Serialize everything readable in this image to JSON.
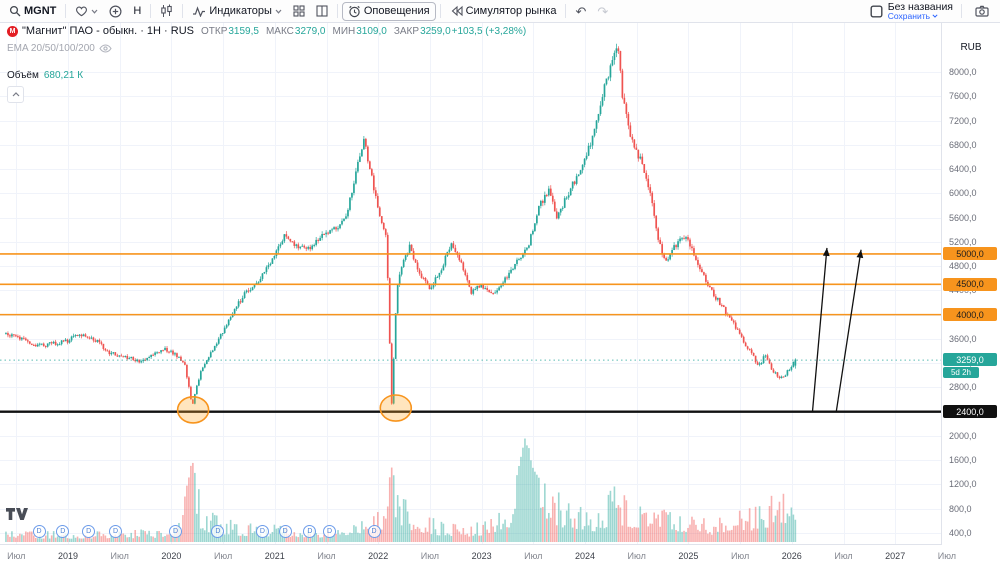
{
  "topbar": {
    "symbol": "MGNT",
    "interval": "H",
    "indicators": "Индикаторы",
    "alerts": "Оповещения",
    "replay": "Симулятор рынка",
    "layout_name": "Без названия",
    "save": "Сохранить"
  },
  "legend": {
    "title": "\"Магнит\" ПАО - обыкн. · 1H · RUS",
    "open_label": "ОТКР",
    "open": "3159,5",
    "high_label": "МАКС",
    "high": "3279,0",
    "low_label": "МИН",
    "low": "3109,0",
    "close_label": "ЗАКР",
    "close": "3259,0",
    "change": "+103,5 (+3,28%)",
    "ema": "EMA 20/50/100/200",
    "volume_label": "Объём",
    "volume_value": "680,21 К"
  },
  "price_axis": {
    "currency": "RUB",
    "label_min": 400,
    "label_max": 8000,
    "step": 400,
    "badges": [
      {
        "text": "5000,0",
        "price": 5000,
        "style": "orange"
      },
      {
        "text": "4500,0",
        "price": 4500,
        "style": "orange"
      },
      {
        "text": "4000,0",
        "price": 4000,
        "style": "orange"
      },
      {
        "text": "3259,0",
        "price": 3259,
        "style": "current",
        "countdown": "5d 2h"
      },
      {
        "text": "2400,0",
        "price": 2400,
        "style": "black"
      }
    ]
  },
  "time_axis": {
    "ticks": [
      {
        "t": 2018.5,
        "label": "Июл",
        "year": false
      },
      {
        "t": 2019,
        "label": "2019",
        "year": true
      },
      {
        "t": 2019.5,
        "label": "Июл",
        "year": false
      },
      {
        "t": 2020,
        "label": "2020",
        "year": true
      },
      {
        "t": 2020.5,
        "label": "Июл",
        "year": false
      },
      {
        "t": 2021,
        "label": "2021",
        "year": true
      },
      {
        "t": 2021.5,
        "label": "Июл",
        "year": false
      },
      {
        "t": 2022,
        "label": "2022",
        "year": true
      },
      {
        "t": 2022.5,
        "label": "Июл",
        "year": false
      },
      {
        "t": 2023,
        "label": "2023",
        "year": true
      },
      {
        "t": 2023.5,
        "label": "Июл",
        "year": false
      },
      {
        "t": 2024,
        "label": "2024",
        "year": true
      },
      {
        "t": 2024.5,
        "label": "Июл",
        "year": false
      },
      {
        "t": 2025,
        "label": "2025",
        "year": true
      },
      {
        "t": 2025.5,
        "label": "Июл",
        "year": false
      },
      {
        "t": 2026,
        "label": "2026",
        "year": true
      },
      {
        "t": 2026.5,
        "label": "Июл",
        "year": false
      },
      {
        "t": 2027,
        "label": "2027",
        "year": true
      },
      {
        "t": 2027.5,
        "label": "Июл",
        "year": false
      }
    ]
  },
  "dividends": {
    "label": "D",
    "dates": [
      2018.71,
      2018.94,
      2019.19,
      2019.45,
      2020.03,
      2020.44,
      2020.87,
      2021.09,
      2021.33,
      2021.52,
      2021.95
    ]
  },
  "chart_data": {
    "type": "candlestick",
    "instrument": "MGNT \"Магнит\" ПАО",
    "currency": "RUB",
    "candle_interval": "1W",
    "visible_year_range": [
      2018.4,
      2027.55
    ],
    "price_label_range": [
      400,
      8000
    ],
    "up_color": "#26a69a",
    "down_color": "#ef5350",
    "last_candle": {
      "open": 3159.5,
      "high": 3279.0,
      "low": 3109.0,
      "close": 3259.0
    },
    "current_price_line": {
      "price": 3259,
      "color": "#26a69a"
    },
    "price_anchors": [
      [
        2018.4,
        3680
      ],
      [
        2018.55,
        3600
      ],
      [
        2018.7,
        3480
      ],
      [
        2018.85,
        3520
      ],
      [
        2019.0,
        3560
      ],
      [
        2019.1,
        3690
      ],
      [
        2019.25,
        3600
      ],
      [
        2019.4,
        3380
      ],
      [
        2019.55,
        3300
      ],
      [
        2019.7,
        3230
      ],
      [
        2019.85,
        3390
      ],
      [
        2019.95,
        3430
      ],
      [
        2020.05,
        3330
      ],
      [
        2020.13,
        3150
      ],
      [
        2020.2,
        2500
      ],
      [
        2020.28,
        3060
      ],
      [
        2020.4,
        3430
      ],
      [
        2020.55,
        3900
      ],
      [
        2020.7,
        4330
      ],
      [
        2020.85,
        4550
      ],
      [
        2021.0,
        4980
      ],
      [
        2021.1,
        5300
      ],
      [
        2021.2,
        5150
      ],
      [
        2021.3,
        5060
      ],
      [
        2021.45,
        5280
      ],
      [
        2021.6,
        5430
      ],
      [
        2021.7,
        5700
      ],
      [
        2021.8,
        6480
      ],
      [
        2021.86,
        6920
      ],
      [
        2021.92,
        6400
      ],
      [
        2022.0,
        5750
      ],
      [
        2022.08,
        5300
      ],
      [
        2022.13,
        2480
      ],
      [
        2022.18,
        4420
      ],
      [
        2022.25,
        4950
      ],
      [
        2022.3,
        5120
      ],
      [
        2022.4,
        4680
      ],
      [
        2022.5,
        4420
      ],
      [
        2022.6,
        4700
      ],
      [
        2022.7,
        5150
      ],
      [
        2022.8,
        4850
      ],
      [
        2022.9,
        4380
      ],
      [
        2023.0,
        4480
      ],
      [
        2023.1,
        4300
      ],
      [
        2023.2,
        4520
      ],
      [
        2023.3,
        4790
      ],
      [
        2023.45,
        5120
      ],
      [
        2023.55,
        5760
      ],
      [
        2023.65,
        6060
      ],
      [
        2023.72,
        5600
      ],
      [
        2023.8,
        5860
      ],
      [
        2023.9,
        6200
      ],
      [
        2024.0,
        6560
      ],
      [
        2024.1,
        7100
      ],
      [
        2024.2,
        7820
      ],
      [
        2024.28,
        8320
      ],
      [
        2024.32,
        8450
      ],
      [
        2024.36,
        7600
      ],
      [
        2024.45,
        6900
      ],
      [
        2024.55,
        6500
      ],
      [
        2024.63,
        6000
      ],
      [
        2024.7,
        5300
      ],
      [
        2024.78,
        4850
      ],
      [
        2024.86,
        5100
      ],
      [
        2024.95,
        5280
      ],
      [
        2025.0,
        5200
      ],
      [
        2025.1,
        4800
      ],
      [
        2025.2,
        4450
      ],
      [
        2025.3,
        4200
      ],
      [
        2025.4,
        3950
      ],
      [
        2025.5,
        3650
      ],
      [
        2025.6,
        3380
      ],
      [
        2025.68,
        3150
      ],
      [
        2025.75,
        3350
      ],
      [
        2025.82,
        3050
      ],
      [
        2025.9,
        2950
      ],
      [
        2025.96,
        3060
      ],
      [
        2026.03,
        3259
      ]
    ],
    "volume_anchors": [
      [
        2018.4,
        0.1
      ],
      [
        2019.3,
        0.09
      ],
      [
        2019.9,
        0.12
      ],
      [
        2020.1,
        0.22
      ],
      [
        2020.2,
        0.8
      ],
      [
        2020.3,
        0.3
      ],
      [
        2020.6,
        0.18
      ],
      [
        2021.0,
        0.15
      ],
      [
        2021.5,
        0.12
      ],
      [
        2021.86,
        0.25
      ],
      [
        2022.05,
        0.3
      ],
      [
        2022.13,
        0.72
      ],
      [
        2022.2,
        0.45
      ],
      [
        2022.35,
        0.3
      ],
      [
        2022.6,
        0.18
      ],
      [
        2022.9,
        0.15
      ],
      [
        2023.1,
        0.22
      ],
      [
        2023.3,
        0.45
      ],
      [
        2023.42,
        1.0
      ],
      [
        2023.5,
        0.7
      ],
      [
        2023.6,
        0.55
      ],
      [
        2023.75,
        0.42
      ],
      [
        2023.9,
        0.35
      ],
      [
        2024.1,
        0.3
      ],
      [
        2024.3,
        0.5
      ],
      [
        2024.45,
        0.35
      ],
      [
        2024.6,
        0.3
      ],
      [
        2024.8,
        0.35
      ],
      [
        2025.0,
        0.25
      ],
      [
        2025.2,
        0.2
      ],
      [
        2025.4,
        0.25
      ],
      [
        2025.6,
        0.3
      ],
      [
        2025.75,
        0.35
      ],
      [
        2025.85,
        0.55
      ],
      [
        2025.96,
        0.42
      ],
      [
        2026.03,
        0.35
      ]
    ],
    "levels": [
      {
        "price": 5000,
        "color": "#f7941d",
        "width": 1.6
      },
      {
        "price": 4500,
        "color": "#f7941d",
        "width": 1.6
      },
      {
        "price": 4000,
        "color": "#f7941d",
        "width": 1.6
      },
      {
        "price": 2400,
        "color": "#111111",
        "width": 2.4
      }
    ],
    "highlights": [
      {
        "t": 2020.21,
        "price": 2430,
        "rx_years": 0.15,
        "ry_price": 215
      },
      {
        "t": 2022.17,
        "price": 2460,
        "rx_years": 0.15,
        "ry_price": 215
      }
    ],
    "arrows": [
      {
        "from": [
          2026.2,
          2400
        ],
        "to": [
          2026.34,
          5100
        ]
      },
      {
        "from": [
          2026.43,
          2400
        ],
        "to": [
          2026.67,
          5070
        ]
      }
    ]
  },
  "colors": {
    "grid": "#f0f3fa",
    "up": "#26a69a",
    "down": "#ef5350",
    "accent_orange": "#f7941d",
    "save_blue": "#2962ff"
  }
}
